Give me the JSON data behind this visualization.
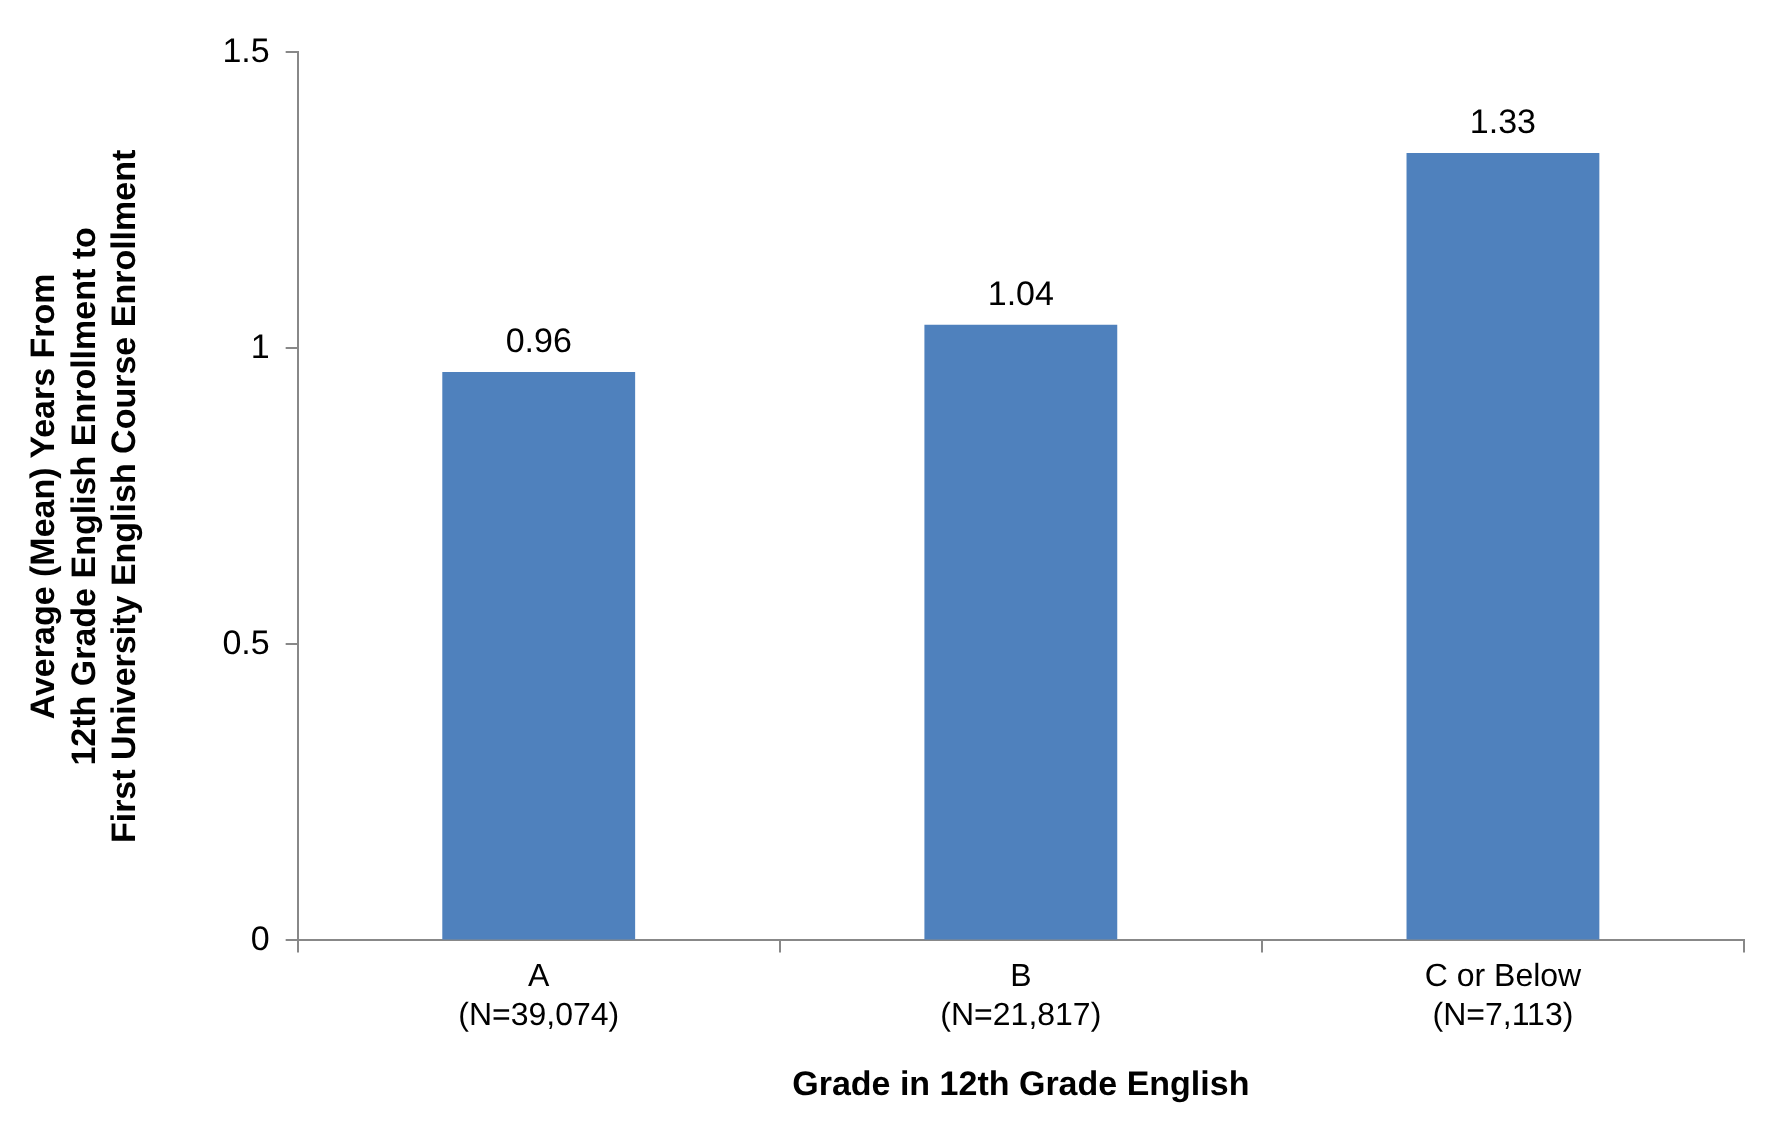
{
  "chart_data": {
    "type": "bar",
    "xlabel": "Grade in 12th Grade English",
    "ylabel": "Average (Mean) Years From\n12th Grade English Enrollment to\nFirst University English Course Enrollment",
    "categories": [
      "A\n(N=39,074)",
      "B\n(N=21,817)",
      "C or Below\n(N=7,113)"
    ],
    "values": [
      0.96,
      1.04,
      1.33
    ],
    "color": "#4f81bd",
    "data_labels": true,
    "ylim": [
      0,
      1.5
    ],
    "yticks": [
      0,
      0.5,
      1,
      1.5
    ],
    "grid": false,
    "legend": false
  }
}
